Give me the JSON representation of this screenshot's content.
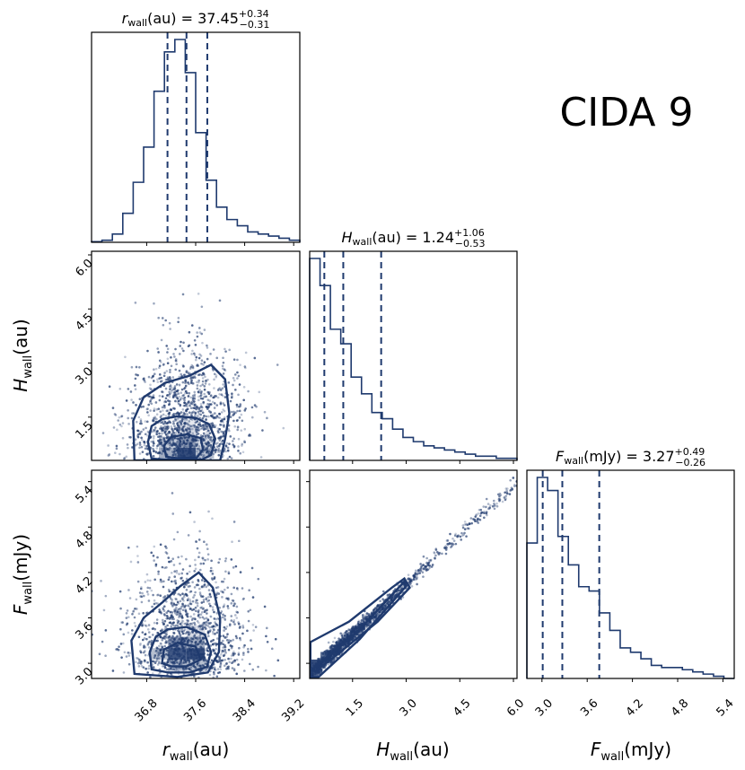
{
  "figure_title": "CIDA 9",
  "colors": {
    "main": "#1f3a6e",
    "frame": "#000000"
  },
  "chart_data": {
    "type": "corner",
    "parameters": [
      {
        "key": "r",
        "symbol": "r",
        "subscript": "wall",
        "unit": "(au)",
        "median": "37.45",
        "plus": "+0.34",
        "minus": "−0.31",
        "range": [
          35.9,
          39.3
        ],
        "ticks": [
          36.8,
          37.6,
          38.4,
          39.2
        ],
        "tick_labels": [
          "36.8",
          "37.6",
          "38.4",
          "39.2"
        ],
        "quantiles": [
          37.14,
          37.45,
          37.79
        ],
        "histogram": {
          "edges": [
            35.9,
            36.07,
            36.24,
            36.41,
            36.58,
            36.75,
            36.92,
            37.09,
            37.26,
            37.43,
            37.6,
            37.77,
            37.94,
            38.11,
            38.28,
            38.45,
            38.62,
            38.79,
            38.96,
            39.13,
            39.3
          ],
          "counts": [
            0.003,
            0.01,
            0.04,
            0.14,
            0.29,
            0.46,
            0.73,
            0.92,
            0.98,
            0.82,
            0.53,
            0.3,
            0.17,
            0.11,
            0.08,
            0.05,
            0.04,
            0.03,
            0.02,
            0.01
          ]
        }
      },
      {
        "key": "H",
        "symbol": "H",
        "subscript": "wall",
        "unit": "(au)",
        "median": "1.24",
        "plus": "+1.06",
        "minus": "−0.53",
        "range": [
          0.3,
          6.1
        ],
        "ticks": [
          1.5,
          3.0,
          4.5,
          6.0
        ],
        "tick_labels": [
          "1.5",
          "3.0",
          "4.5",
          "6.0"
        ],
        "quantiles": [
          0.71,
          1.24,
          2.3
        ],
        "histogram": {
          "edges": [
            0.3,
            0.59,
            0.88,
            1.17,
            1.46,
            1.75,
            2.04,
            2.33,
            2.62,
            2.91,
            3.2,
            3.49,
            3.78,
            4.07,
            4.36,
            4.65,
            4.94,
            5.23,
            5.52,
            5.81,
            6.1
          ],
          "counts": [
            0.97,
            0.84,
            0.63,
            0.56,
            0.4,
            0.32,
            0.23,
            0.2,
            0.15,
            0.11,
            0.09,
            0.07,
            0.06,
            0.05,
            0.04,
            0.03,
            0.02,
            0.02,
            0.01,
            0.01
          ]
        }
      },
      {
        "key": "F",
        "symbol": "F",
        "subscript": "wall",
        "unit": "(mJy)",
        "median": "3.27",
        "plus": "+0.49",
        "minus": "−0.26",
        "range": [
          2.8,
          5.55
        ],
        "ticks": [
          3.0,
          3.6,
          4.2,
          4.8,
          5.4
        ],
        "tick_labels": [
          "3.0",
          "3.6",
          "4.2",
          "4.8",
          "5.4"
        ],
        "quantiles": [
          3.01,
          3.27,
          3.76
        ],
        "histogram": {
          "edges": [
            2.8,
            2.9375,
            3.075,
            3.2125,
            3.35,
            3.4875,
            3.625,
            3.7625,
            3.9,
            4.0375,
            4.175,
            4.3125,
            4.45,
            4.5875,
            4.725,
            4.8625,
            5.0,
            5.1375,
            5.275,
            5.4125,
            5.55
          ],
          "counts": [
            0.62,
            0.92,
            0.86,
            0.65,
            0.52,
            0.42,
            0.4,
            0.3,
            0.22,
            0.14,
            0.12,
            0.09,
            0.06,
            0.05,
            0.05,
            0.04,
            0.03,
            0.02,
            0.01,
            0.0
          ]
        }
      }
    ],
    "pairs": [
      {
        "x": "r",
        "y": "H",
        "center": [
          37.45,
          0.9
        ],
        "spread": [
          0.33,
          0.65
        ],
        "contours": [
          [
            [
              36.88,
              0.35
            ],
            [
              36.82,
              0.8
            ],
            [
              36.88,
              1.25
            ],
            [
              37.06,
              1.45
            ],
            [
              37.3,
              1.52
            ],
            [
              37.6,
              1.48
            ],
            [
              37.82,
              1.3
            ],
            [
              37.92,
              0.9
            ],
            [
              37.85,
              0.45
            ],
            [
              37.7,
              0.32
            ],
            [
              37.1,
              0.32
            ]
          ],
          [
            [
              37.12,
              0.4
            ],
            [
              37.08,
              0.7
            ],
            [
              37.2,
              0.95
            ],
            [
              37.45,
              1.02
            ],
            [
              37.68,
              0.92
            ],
            [
              37.72,
              0.6
            ],
            [
              37.62,
              0.38
            ],
            [
              37.3,
              0.36
            ]
          ],
          [
            [
              36.6,
              0.3
            ],
            [
              36.58,
              1.4
            ],
            [
              36.75,
              2.05
            ],
            [
              37.1,
              2.45
            ],
            [
              37.5,
              2.65
            ],
            [
              37.85,
              2.95
            ],
            [
              38.08,
              2.55
            ],
            [
              38.15,
              1.6
            ],
            [
              38.08,
              0.9
            ],
            [
              38.0,
              0.3
            ]
          ]
        ],
        "density_cells": [
          {
            "x": [
              37.3,
              37.6
            ],
            "y": [
              0.35,
              0.65
            ],
            "level": 1.0
          },
          {
            "x": [
              37.3,
              37.6
            ],
            "y": [
              0.65,
              0.95
            ],
            "level": 0.55
          },
          {
            "x": [
              37.0,
              37.3
            ],
            "y": [
              0.35,
              0.65
            ],
            "level": 0.45
          },
          {
            "x": [
              37.6,
              37.9
            ],
            "y": [
              0.35,
              0.65
            ],
            "level": 0.35
          },
          {
            "x": [
              37.0,
              37.3
            ],
            "y": [
              0.65,
              0.95
            ],
            "level": 0.28
          },
          {
            "x": [
              37.6,
              37.9
            ],
            "y": [
              0.65,
              0.95
            ],
            "level": 0.22
          },
          {
            "x": [
              37.3,
              37.6
            ],
            "y": [
              0.95,
              1.25
            ],
            "level": 0.2
          },
          {
            "x": [
              37.3,
              37.6
            ],
            "y": [
              1.25,
              1.55
            ],
            "level": 0.12
          }
        ]
      },
      {
        "x": "r",
        "y": "F",
        "center": [
          37.45,
          3.25
        ],
        "spread": [
          0.33,
          0.3
        ],
        "contours": [
          [
            [
              36.88,
              2.92
            ],
            [
              36.85,
              3.15
            ],
            [
              36.95,
              3.35
            ],
            [
              37.15,
              3.45
            ],
            [
              37.45,
              3.48
            ],
            [
              37.75,
              3.38
            ],
            [
              37.85,
              3.15
            ],
            [
              37.78,
              2.95
            ],
            [
              37.5,
              2.88
            ],
            [
              37.15,
              2.88
            ]
          ],
          [
            [
              37.05,
              3.0
            ],
            [
              37.08,
              3.18
            ],
            [
              37.3,
              3.27
            ],
            [
              37.6,
              3.22
            ],
            [
              37.68,
              3.05
            ],
            [
              37.45,
              2.96
            ],
            [
              37.2,
              2.96
            ]
          ],
          [
            [
              36.6,
              2.86
            ],
            [
              36.55,
              3.3
            ],
            [
              36.75,
              3.6
            ],
            [
              37.05,
              3.8
            ],
            [
              37.35,
              4.02
            ],
            [
              37.65,
              4.2
            ],
            [
              37.88,
              4.0
            ],
            [
              38.0,
              3.6
            ],
            [
              37.98,
              3.15
            ],
            [
              37.8,
              2.88
            ],
            [
              37.3,
              2.82
            ]
          ]
        ],
        "density_cells": [
          {
            "x": [
              37.15,
              37.45
            ],
            "y": [
              3.05,
              3.2
            ],
            "level": 0.95
          },
          {
            "x": [
              37.45,
              37.75
            ],
            "y": [
              3.05,
              3.2
            ],
            "level": 1.0
          },
          {
            "x": [
              37.15,
              37.45
            ],
            "y": [
              3.2,
              3.35
            ],
            "level": 0.6
          },
          {
            "x": [
              37.45,
              37.75
            ],
            "y": [
              3.2,
              3.35
            ],
            "level": 0.45
          },
          {
            "x": [
              36.85,
              37.15
            ],
            "y": [
              3.05,
              3.2
            ],
            "level": 0.35
          },
          {
            "x": [
              37.15,
              37.45
            ],
            "y": [
              2.9,
              3.05
            ],
            "level": 0.4
          },
          {
            "x": [
              37.45,
              37.75
            ],
            "y": [
              2.9,
              3.05
            ],
            "level": 0.35
          },
          {
            "x": [
              37.45,
              37.75
            ],
            "y": [
              3.35,
              3.5
            ],
            "level": 0.2
          }
        ]
      },
      {
        "x": "H",
        "y": "F",
        "line": {
          "slope": 0.44,
          "intercept": 2.72
        },
        "contours": [
          [
            [
              0.32,
              2.9
            ],
            [
              0.45,
              2.95
            ],
            [
              1.6,
              3.4
            ],
            [
              2.95,
              4.08
            ],
            [
              3.0,
              4.02
            ],
            [
              1.7,
              3.32
            ],
            [
              0.55,
              2.82
            ],
            [
              0.32,
              2.82
            ]
          ],
          [
            [
              0.32,
              2.95
            ],
            [
              0.32,
              3.28
            ],
            [
              1.4,
              3.55
            ],
            [
              2.6,
              4.0
            ],
            [
              2.95,
              4.12
            ],
            [
              3.1,
              4.0
            ],
            [
              2.2,
              3.55
            ],
            [
              0.9,
              3.05
            ],
            [
              0.45,
              2.9
            ]
          ]
        ],
        "density_cells": [
          {
            "x": [
              0.3,
              0.6
            ],
            "y": [
              2.85,
              3.05
            ],
            "level": 1.0
          },
          {
            "x": [
              0.6,
              0.9
            ],
            "y": [
              3.0,
              3.15
            ],
            "level": 0.8
          },
          {
            "x": [
              0.9,
              1.2
            ],
            "y": [
              3.1,
              3.25
            ],
            "level": 0.55
          },
          {
            "x": [
              1.2,
              1.5
            ],
            "y": [
              3.25,
              3.4
            ],
            "level": 0.35
          },
          {
            "x": [
              1.5,
              1.8
            ],
            "y": [
              3.35,
              3.5
            ],
            "level": 0.25
          },
          {
            "x": [
              1.8,
              2.1
            ],
            "y": [
              3.5,
              3.65
            ],
            "level": 0.18
          }
        ]
      }
    ]
  }
}
